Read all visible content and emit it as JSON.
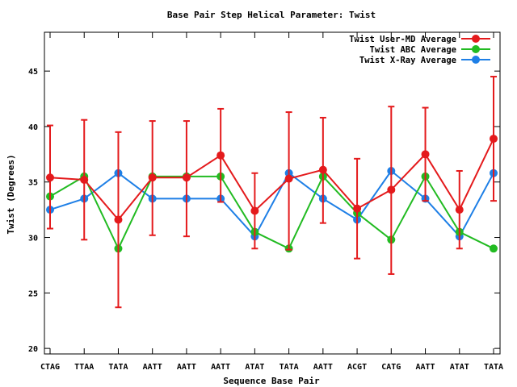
{
  "chart_data": {
    "type": "line",
    "title": "Base Pair Step Helical Parameter: Twist",
    "xlabel": "Sequence Base Pair",
    "ylabel": "Twist (Degrees)",
    "ylim": [
      19.5,
      48.5
    ],
    "yticks": [
      20,
      25,
      30,
      35,
      40,
      45
    ],
    "categories": [
      "CTAG",
      "TTAA",
      "TATA",
      "AATT",
      "AATT",
      "AATT",
      "ATAT",
      "TATA",
      "AATT",
      "ACGT",
      "CATG",
      "AATT",
      "ATAT",
      "TATA"
    ],
    "grid": false,
    "legend_position": "top-right",
    "series": [
      {
        "name": "Twist User-MD Average",
        "color": "#e41a1c",
        "values": [
          35.4,
          35.2,
          31.6,
          35.4,
          35.4,
          37.4,
          32.4,
          35.3,
          36.1,
          32.6,
          34.3,
          37.5,
          32.5,
          38.9
        ],
        "error_low": [
          30.8,
          29.8,
          23.7,
          30.2,
          30.1,
          33.2,
          29.0,
          28.9,
          31.3,
          28.1,
          26.7,
          33.3,
          29.0,
          33.3
        ],
        "error_high": [
          40.1,
          40.6,
          39.5,
          40.5,
          40.5,
          41.6,
          35.8,
          41.3,
          40.8,
          37.1,
          41.8,
          41.7,
          36.0,
          44.5
        ]
      },
      {
        "name": "Twist ABC Average",
        "color": "#22bb22",
        "values": [
          33.7,
          35.5,
          29.0,
          35.5,
          35.5,
          35.5,
          30.5,
          29.0,
          35.5,
          32.2,
          29.8,
          35.5,
          30.5,
          29.0
        ]
      },
      {
        "name": "Twist X-Ray Average",
        "color": "#1e7fe6",
        "values": [
          32.5,
          33.5,
          35.8,
          33.5,
          33.5,
          33.5,
          30.1,
          35.8,
          33.5,
          31.6,
          36.0,
          33.5,
          30.1,
          35.8
        ]
      }
    ]
  }
}
